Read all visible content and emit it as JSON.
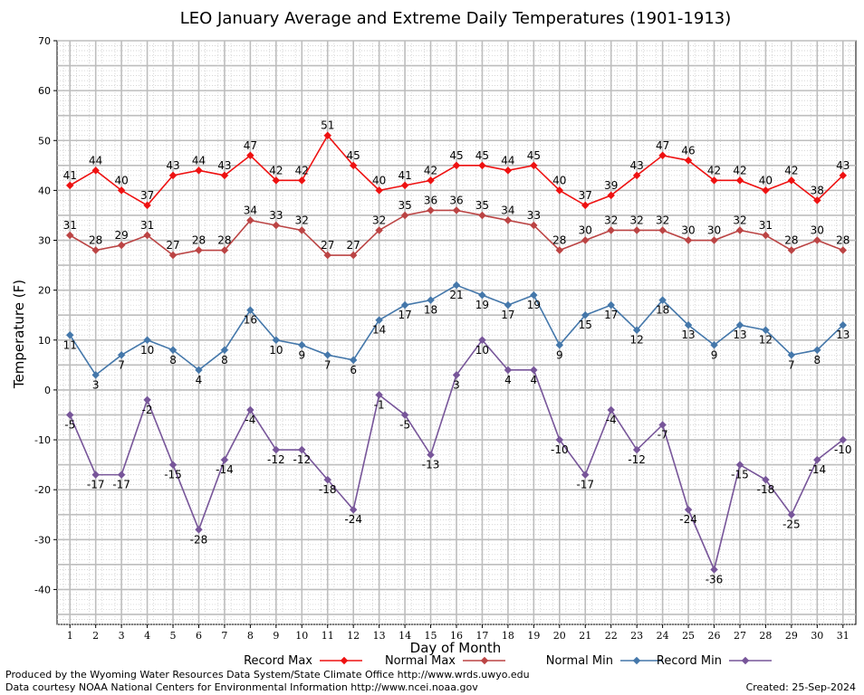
{
  "chart_data": {
    "type": "line",
    "title": "LEO January Average and Extreme Daily Temperatures (1901-1913)",
    "xlabel": "Day of Month",
    "ylabel": "Temperature (F)",
    "x": [
      1,
      2,
      3,
      4,
      5,
      6,
      7,
      8,
      9,
      10,
      11,
      12,
      13,
      14,
      15,
      16,
      17,
      18,
      19,
      20,
      21,
      22,
      23,
      24,
      25,
      26,
      27,
      28,
      29,
      30,
      31
    ],
    "xlim": [
      0.5,
      31.5
    ],
    "ylim": [
      -47,
      70
    ],
    "yticks": [
      -40,
      -30,
      -20,
      -10,
      0,
      10,
      20,
      30,
      40,
      50,
      60,
      70
    ],
    "grid": true,
    "legend_position": "bottom",
    "series": [
      {
        "name": "Record Max",
        "color": "#ee1111",
        "values": [
          41,
          44,
          40,
          37,
          43,
          44,
          43,
          47,
          42,
          42,
          51,
          45,
          40,
          41,
          42,
          45,
          45,
          44,
          45,
          40,
          37,
          39,
          43,
          47,
          46,
          42,
          42,
          40,
          42,
          38,
          43
        ]
      },
      {
        "name": "Normal Max",
        "color": "#bb4444",
        "values": [
          31,
          28,
          29,
          31,
          27,
          28,
          28,
          34,
          33,
          32,
          27,
          27,
          32,
          35,
          36,
          36,
          35,
          34,
          33,
          28,
          30,
          32,
          32,
          32,
          30,
          30,
          32,
          31,
          28,
          30,
          28
        ]
      },
      {
        "name": "Normal Min",
        "color": "#4477aa",
        "values": [
          11,
          3,
          7,
          10,
          8,
          4,
          8,
          16,
          10,
          9,
          7,
          6,
          14,
          17,
          18,
          21,
          19,
          17,
          19,
          9,
          15,
          17,
          12,
          18,
          13,
          9,
          13,
          12,
          7,
          8,
          13
        ]
      },
      {
        "name": "Record Min",
        "color": "#775599",
        "values": [
          -5,
          -17,
          -17,
          -2,
          -15,
          -28,
          -14,
          -4,
          -12,
          -12,
          -18,
          -24,
          -1,
          -5,
          -13,
          3,
          10,
          4,
          4,
          -10,
          -17,
          -4,
          -12,
          -7,
          -24,
          -36,
          -15,
          -18,
          -25,
          -14,
          -10
        ]
      }
    ]
  },
  "footer": {
    "line1": "Produced by the Wyoming Water Resources Data System/State Climate Office http://www.wrds.uwyo.edu",
    "line2": "Data courtesy NOAA National Centers for Environmental Information http://www.ncei.noaa.gov",
    "created": "Created:  25-Sep-2024"
  }
}
